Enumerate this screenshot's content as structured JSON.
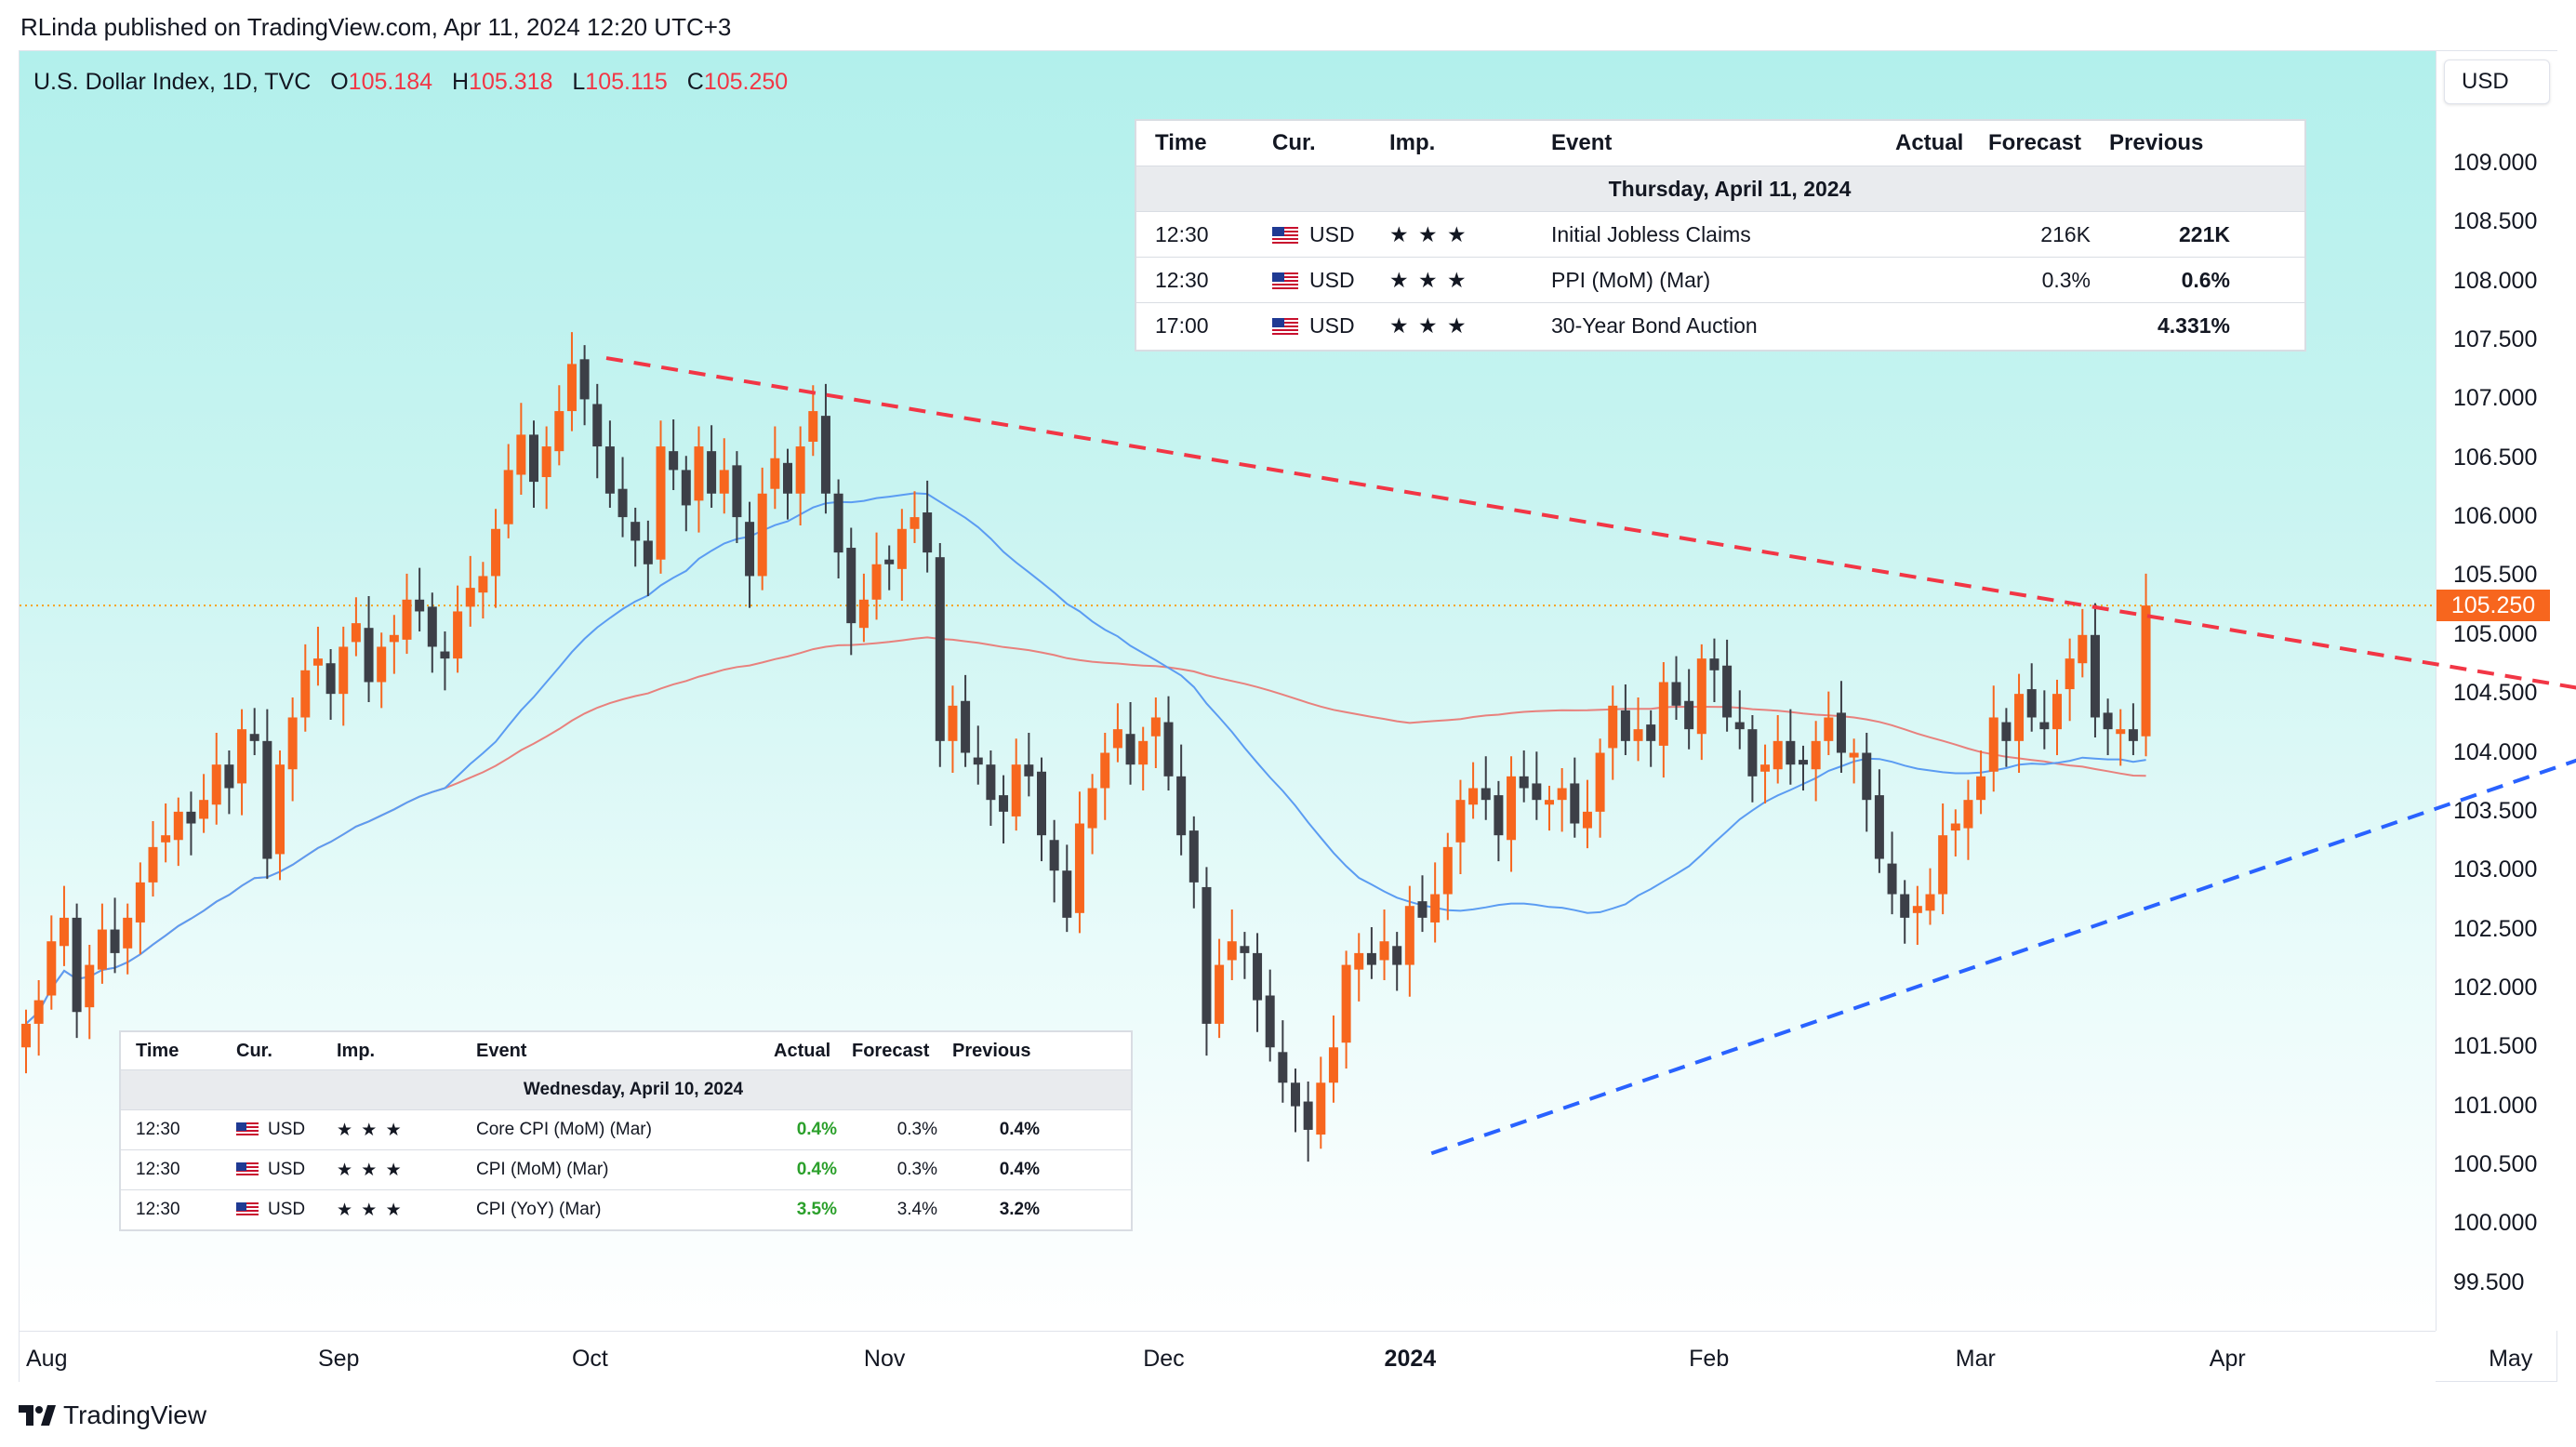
{
  "header": {
    "text": "RLinda published on TradingView.com, Apr 11, 2024 12:20 UTC+3"
  },
  "symbol": {
    "name": "U.S. Dollar Index, 1D, TVC",
    "o_label": "O",
    "o": "105.184",
    "h_label": "H",
    "h": "105.318",
    "l_label": "L",
    "l": "105.115",
    "c_label": "C",
    "c": "105.250"
  },
  "currency_button": "USD",
  "last_price": "105.250",
  "footer": {
    "brand": "TradingView"
  },
  "colors": {
    "bull": "#f7661e",
    "bear": "#3c3f47",
    "ma_fast": "#5b9cf2",
    "ma_slow": "#e8817d",
    "resistance": "#f23645",
    "support": "#2962ff",
    "last_price_line": "#f7a21e",
    "positive_actual": "#2ba02b"
  },
  "icons": {
    "flag": "us-flag-icon",
    "importance": "star-icon",
    "logo": "tradingview-logo-icon"
  },
  "chart_data": {
    "type": "candlestick",
    "title": "U.S. Dollar Index, 1D, TVC",
    "ylim": [
      99.2,
      109.6
    ],
    "y_ticks": [
      "109.000",
      "108.500",
      "108.000",
      "107.500",
      "107.000",
      "106.500",
      "106.000",
      "105.500",
      "105.000",
      "104.500",
      "104.000",
      "103.500",
      "103.000",
      "102.500",
      "102.000",
      "101.500",
      "101.000",
      "100.500",
      "100.000",
      "99.500"
    ],
    "x_ticks": [
      {
        "label": "Aug",
        "bar": 0,
        "bold": false
      },
      {
        "label": "Sep",
        "bar": 23,
        "bold": false
      },
      {
        "label": "Oct",
        "bar": 43,
        "bold": false
      },
      {
        "label": "Nov",
        "bar": 66,
        "bold": false
      },
      {
        "label": "Dec",
        "bar": 88,
        "bold": false
      },
      {
        "label": "2024",
        "bar": 107,
        "bold": true
      },
      {
        "label": "Feb",
        "bar": 131,
        "bold": false
      },
      {
        "label": "Mar",
        "bar": 152,
        "bold": false
      },
      {
        "label": "Apr",
        "bar": 172,
        "bold": false
      },
      {
        "label": "May",
        "bar": 194,
        "bold": false
      }
    ],
    "closes": [
      101.7,
      101.9,
      102.4,
      102.6,
      101.8,
      102.2,
      102.5,
      102.3,
      102.6,
      102.9,
      103.2,
      103.3,
      103.5,
      103.4,
      103.6,
      103.9,
      103.7,
      104.2,
      104.1,
      103.1,
      103.9,
      104.3,
      104.7,
      104.8,
      104.5,
      104.9,
      105.1,
      104.6,
      104.9,
      105.0,
      105.3,
      105.2,
      104.9,
      104.8,
      105.2,
      105.4,
      105.5,
      105.9,
      106.4,
      106.7,
      106.3,
      106.6,
      106.9,
      107.3,
      107.0,
      106.6,
      106.2,
      106.0,
      105.8,
      105.6,
      106.6,
      106.4,
      106.1,
      106.6,
      106.2,
      106.4,
      106.0,
      105.5,
      106.2,
      106.5,
      106.2,
      106.6,
      106.9,
      106.2,
      105.7,
      105.1,
      105.3,
      105.6,
      105.6,
      105.9,
      106.0,
      105.7,
      104.1,
      104.4,
      104.0,
      103.9,
      103.6,
      103.5,
      103.9,
      103.8,
      103.3,
      103.0,
      102.6,
      103.4,
      103.7,
      104.0,
      104.2,
      103.9,
      104.1,
      104.3,
      103.8,
      103.3,
      102.9,
      101.7,
      102.2,
      102.4,
      102.3,
      101.9,
      101.5,
      101.2,
      101.0,
      100.8,
      101.2,
      101.5,
      102.2,
      102.3,
      102.2,
      102.4,
      102.2,
      102.7,
      102.6,
      102.8,
      103.2,
      103.6,
      103.7,
      103.6,
      103.3,
      103.8,
      103.7,
      103.6,
      103.6,
      103.7,
      103.4,
      103.5,
      104.0,
      104.4,
      104.1,
      104.2,
      104.1,
      104.6,
      104.4,
      104.2,
      104.8,
      104.7,
      104.3,
      104.2,
      103.8,
      103.9,
      104.1,
      103.9,
      103.9,
      104.1,
      104.3,
      104.0,
      104.0,
      103.6,
      103.1,
      102.8,
      102.6,
      102.7,
      102.8,
      103.3,
      103.4,
      103.6,
      103.8,
      104.3,
      104.1,
      104.5,
      104.3,
      104.2,
      104.5,
      104.8,
      105.0,
      104.3,
      104.2,
      104.2,
      104.1,
      105.25
    ],
    "series": [
      {
        "name": "",
        "kind": "moving_average_fast"
      },
      {
        "name": "",
        "kind": "moving_average_slow"
      }
    ],
    "trendlines": [
      {
        "kind": "resistance",
        "style": "dashed",
        "points": [
          [
            "2023-10-03",
            107.35
          ],
          [
            "2024-05-23",
            104.35
          ]
        ]
      },
      {
        "kind": "support",
        "style": "dashed",
        "points": [
          [
            "2024-01-02",
            100.6
          ],
          [
            "2024-05-23",
            104.35
          ]
        ]
      }
    ]
  },
  "calendar_top": {
    "headers": {
      "time": "Time",
      "cur": "Cur.",
      "imp": "Imp.",
      "event": "Event",
      "actual": "Actual",
      "forecast": "Forecast",
      "previous": "Previous"
    },
    "date": "Thursday, April 11, 2024",
    "rows": [
      {
        "time": "12:30",
        "cur": "USD",
        "stars": "★ ★ ★",
        "event": "Initial Jobless Claims",
        "actual": "",
        "forecast": "216K",
        "previous": "221K"
      },
      {
        "time": "12:30",
        "cur": "USD",
        "stars": "★ ★ ★",
        "event": "PPI (MoM) (Mar)",
        "actual": "",
        "forecast": "0.3%",
        "previous": "0.6%"
      },
      {
        "time": "17:00",
        "cur": "USD",
        "stars": "★ ★ ★",
        "event": "30-Year Bond Auction",
        "actual": "",
        "forecast": "",
        "previous": "4.331%"
      }
    ]
  },
  "calendar_bottom": {
    "headers": {
      "time": "Time",
      "cur": "Cur.",
      "imp": "Imp.",
      "event": "Event",
      "actual": "Actual",
      "forecast": "Forecast",
      "previous": "Previous"
    },
    "date": "Wednesday, April 10, 2024",
    "rows": [
      {
        "time": "12:30",
        "cur": "USD",
        "stars": "★ ★ ★",
        "event": "Core CPI (MoM) (Mar)",
        "actual": "0.4%",
        "forecast": "0.3%",
        "previous": "0.4%"
      },
      {
        "time": "12:30",
        "cur": "USD",
        "stars": "★ ★ ★",
        "event": "CPI (MoM) (Mar)",
        "actual": "0.4%",
        "forecast": "0.3%",
        "previous": "0.4%"
      },
      {
        "time": "12:30",
        "cur": "USD",
        "stars": "★ ★ ★",
        "event": "CPI (YoY) (Mar)",
        "actual": "3.5%",
        "forecast": "3.4%",
        "previous": "3.2%"
      }
    ]
  }
}
